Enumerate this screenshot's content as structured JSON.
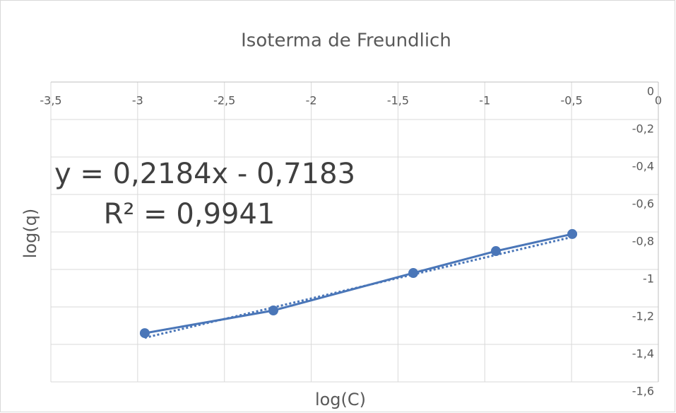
{
  "chart_data": {
    "type": "scatter",
    "title": "Isoterma de Freundlich",
    "x_label": "log(C)",
    "y_label": "log(q)",
    "series": [
      {
        "name": "log(q)",
        "color": "#4a76b8",
        "x": [
          -2.959,
          -2.218,
          -1.412,
          -0.936,
          -0.496
        ],
        "values": [
          -1.34,
          -1.219,
          -1.019,
          -0.902,
          -0.811
        ]
      }
    ],
    "trendline": {
      "slope": 0.2184,
      "intercept": -0.7183,
      "r2": 0.9941,
      "equation_label": "y = 0,2184x - 0,7183",
      "r2_label": "R² = 0,9941"
    },
    "xlim": [
      -3.5,
      0
    ],
    "xticks": [
      {
        "value": -3.5,
        "label": "-3,5"
      },
      -3,
      {
        "value": -2.5,
        "label": "-2,5"
      },
      -2,
      {
        "value": -1.5,
        "label": "-1,5"
      },
      -1,
      {
        "value": -0.5,
        "label": "-0,5"
      },
      0
    ],
    "ylim": [
      -1.6,
      0
    ],
    "yticks": [
      0,
      {
        "value": -0.2,
        "label": "-0,2"
      },
      {
        "value": -0.4,
        "label": "-0,4"
      },
      {
        "value": -0.6,
        "label": "-0,6"
      },
      {
        "value": -0.8,
        "label": "-0,8"
      },
      -1,
      {
        "value": -1.2,
        "label": "-1,2"
      },
      {
        "value": -1.4,
        "label": "-1,4"
      },
      {
        "value": -1.6,
        "label": "-1,6"
      }
    ],
    "grid": true
  }
}
